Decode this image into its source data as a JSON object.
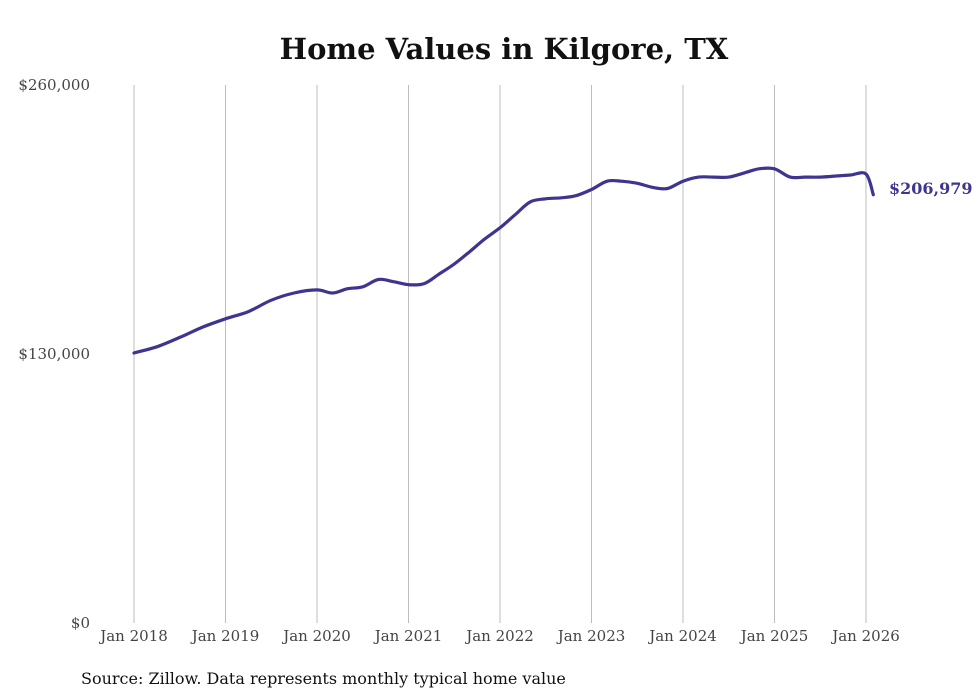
{
  "chart_data": {
    "type": "line",
    "title": "Home Values in Kilgore, TX",
    "xlabel": "",
    "ylabel": "",
    "ylim": [
      0,
      260000
    ],
    "y_ticks": [
      {
        "value": 0,
        "label": "$0"
      },
      {
        "value": 130000,
        "label": "$130,000"
      },
      {
        "value": 260000,
        "label": "$260,000"
      }
    ],
    "x_range": [
      2018.0,
      2026.0
    ],
    "x_ticks": [
      {
        "value": 2018,
        "label": "Jan 2018"
      },
      {
        "value": 2019,
        "label": "Jan 2019"
      },
      {
        "value": 2020,
        "label": "Jan 2020"
      },
      {
        "value": 2021,
        "label": "Jan 2021"
      },
      {
        "value": 2022,
        "label": "Jan 2022"
      },
      {
        "value": 2023,
        "label": "Jan 2023"
      },
      {
        "value": 2024,
        "label": "Jan 2024"
      },
      {
        "value": 2025,
        "label": "Jan 2025"
      },
      {
        "value": 2026,
        "label": "Jan 2026"
      }
    ],
    "grid": "vertical",
    "series": [
      {
        "name": "Typical home value",
        "color": "#3d3590",
        "x": [
          2018.0,
          2018.25,
          2018.5,
          2018.75,
          2019.0,
          2019.25,
          2019.5,
          2019.75,
          2020.0,
          2020.17,
          2020.33,
          2020.5,
          2020.67,
          2020.83,
          2021.0,
          2021.17,
          2021.33,
          2021.5,
          2021.67,
          2021.83,
          2022.0,
          2022.17,
          2022.33,
          2022.5,
          2022.67,
          2022.83,
          2023.0,
          2023.17,
          2023.33,
          2023.5,
          2023.67,
          2023.83,
          2024.0,
          2024.17,
          2024.33,
          2024.5,
          2024.67,
          2024.83,
          2025.0,
          2025.17,
          2025.33,
          2025.5,
          2025.67,
          2025.83,
          2026.0,
          2026.08
        ],
        "values": [
          130500,
          133500,
          138000,
          143000,
          147000,
          150500,
          156000,
          159500,
          161000,
          159500,
          161500,
          162500,
          166000,
          165000,
          163500,
          164000,
          168500,
          173500,
          179500,
          185500,
          191000,
          197500,
          203500,
          205000,
          205500,
          206500,
          209500,
          213500,
          213500,
          212500,
          210500,
          210000,
          213500,
          215500,
          215500,
          215500,
          217500,
          219500,
          219500,
          215500,
          215500,
          215500,
          216000,
          216500,
          217000,
          206979
        ]
      }
    ],
    "end_label": "$206,979",
    "source": "Source: Zillow. Data represents monthly typical home value"
  }
}
